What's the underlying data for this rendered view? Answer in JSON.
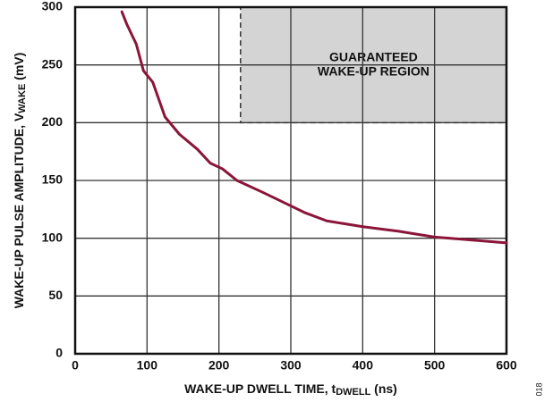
{
  "chart_data": {
    "type": "line",
    "xlabel": [
      "WAKE-UP DWELL TIME, t",
      "DWELL",
      " (ns)"
    ],
    "ylabel": [
      "WAKE-UP PULSE AMPLITUDE, V",
      "WAKE",
      " (mV)"
    ],
    "figure_id": "018",
    "x": [
      65,
      72,
      85,
      95,
      108,
      125,
      145,
      170,
      188,
      205,
      225,
      260,
      300,
      320,
      350,
      400,
      450,
      500,
      520,
      600
    ],
    "series": [
      {
        "color": "#8b1538",
        "values": [
          296,
          285,
          268,
          245,
          235,
          205,
          190,
          177,
          165,
          160,
          150,
          140,
          128,
          122,
          115,
          110,
          106,
          101,
          100,
          96
        ]
      }
    ],
    "region": {
      "x": [
        230,
        600
      ],
      "y": [
        200,
        300
      ],
      "label": [
        "GUARANTEED",
        "WAKE-UP REGION"
      ],
      "color": "#d4d4d4"
    },
    "xlim": [
      0,
      600
    ],
    "xticks": [
      0,
      100,
      200,
      300,
      400,
      500,
      600
    ],
    "ylim": [
      0,
      300
    ],
    "yticks": [
      0,
      50,
      100,
      150,
      200,
      250,
      300
    ],
    "grid": true
  }
}
